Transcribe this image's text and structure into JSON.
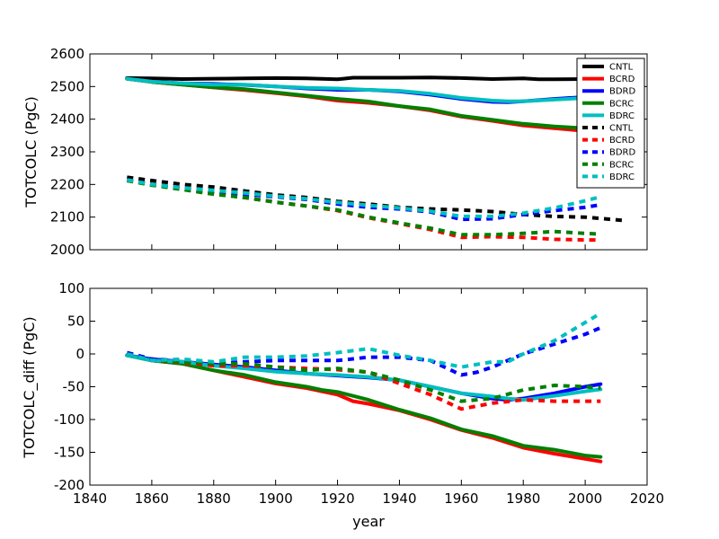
{
  "chart_data": [
    {
      "type": "line",
      "title": "",
      "xlabel": "",
      "ylabel": "TOTCOLC (PgC)",
      "xlim": [
        1840,
        2020
      ],
      "ylim": [
        2000,
        2600
      ],
      "yticks": [
        2000,
        2100,
        2200,
        2300,
        2400,
        2500,
        2600
      ],
      "grid": false,
      "legend_position": "right",
      "series": [
        {
          "name": "CNTL",
          "color": "#000000",
          "style": "solid",
          "x": [
            1852,
            1860,
            1870,
            1880,
            1890,
            1900,
            1910,
            1920,
            1925,
            1930,
            1940,
            1950,
            1960,
            1970,
            1980,
            1985,
            1990,
            2000,
            2005
          ],
          "y": [
            2526,
            2525,
            2523,
            2524,
            2525,
            2526,
            2525,
            2522,
            2527,
            2527,
            2527,
            2528,
            2526,
            2523,
            2525,
            2522,
            2522,
            2523,
            2524
          ]
        },
        {
          "name": "BCRD",
          "color": "#ff0000",
          "style": "solid",
          "x": [
            1852,
            1860,
            1870,
            1880,
            1890,
            1900,
            1910,
            1920,
            1930,
            1940,
            1950,
            1960,
            1970,
            1980,
            1990,
            2000,
            2005
          ],
          "y": [
            2524,
            2514,
            2506,
            2497,
            2489,
            2480,
            2470,
            2457,
            2450,
            2440,
            2427,
            2408,
            2395,
            2381,
            2372,
            2364,
            2360
          ]
        },
        {
          "name": "BDRD",
          "color": "#0000ff",
          "style": "solid",
          "x": [
            1852,
            1860,
            1870,
            1880,
            1890,
            1900,
            1910,
            1920,
            1930,
            1940,
            1950,
            1960,
            1970,
            1975,
            1980,
            1990,
            2000,
            2005
          ],
          "y": [
            2524,
            2515,
            2510,
            2508,
            2505,
            2500,
            2494,
            2490,
            2490,
            2485,
            2475,
            2462,
            2453,
            2452,
            2455,
            2462,
            2468,
            2470
          ]
        },
        {
          "name": "BCRC",
          "color": "#008000",
          "style": "solid",
          "x": [
            1852,
            1860,
            1870,
            1880,
            1890,
            1900,
            1910,
            1920,
            1930,
            1940,
            1950,
            1960,
            1970,
            1980,
            1990,
            2000,
            2005
          ],
          "y": [
            2524,
            2514,
            2506,
            2498,
            2492,
            2482,
            2472,
            2462,
            2454,
            2440,
            2430,
            2410,
            2398,
            2386,
            2378,
            2372,
            2368
          ]
        },
        {
          "name": "BDRC",
          "color": "#00bfbf",
          "style": "solid",
          "x": [
            1852,
            1860,
            1870,
            1880,
            1890,
            1900,
            1910,
            1920,
            1930,
            1940,
            1950,
            1960,
            1970,
            1975,
            1980,
            1990,
            2000,
            2005
          ],
          "y": [
            2524,
            2515,
            2510,
            2506,
            2506,
            2500,
            2496,
            2494,
            2490,
            2487,
            2478,
            2465,
            2457,
            2455,
            2455,
            2460,
            2465,
            2468
          ]
        },
        {
          "name": "CNTL",
          "color": "#000000",
          "style": "dashed",
          "x": [
            1852,
            1860,
            1870,
            1880,
            1890,
            1900,
            1910,
            1920,
            1930,
            1940,
            1950,
            1960,
            1970,
            1980,
            1990,
            2000,
            2012
          ],
          "y": [
            2222,
            2212,
            2200,
            2192,
            2180,
            2168,
            2160,
            2148,
            2140,
            2130,
            2125,
            2122,
            2117,
            2108,
            2102,
            2100,
            2090
          ]
        },
        {
          "name": "BCRD",
          "color": "#ff0000",
          "style": "dashed",
          "x": [
            1852,
            1860,
            1870,
            1880,
            1890,
            1900,
            1910,
            1920,
            1930,
            1940,
            1950,
            1960,
            1970,
            1980,
            1990,
            2000,
            2005
          ],
          "y": [
            2212,
            2200,
            2186,
            2172,
            2160,
            2146,
            2134,
            2120,
            2098,
            2080,
            2062,
            2038,
            2040,
            2038,
            2032,
            2030,
            2030
          ]
        },
        {
          "name": "BDRD",
          "color": "#0000ff",
          "style": "dashed",
          "x": [
            1852,
            1860,
            1870,
            1880,
            1890,
            1900,
            1910,
            1920,
            1930,
            1940,
            1950,
            1960,
            1970,
            1980,
            1990,
            2000,
            2005
          ],
          "y": [
            2214,
            2200,
            2188,
            2178,
            2170,
            2162,
            2154,
            2140,
            2130,
            2125,
            2116,
            2093,
            2095,
            2108,
            2120,
            2130,
            2138
          ]
        },
        {
          "name": "BCRC",
          "color": "#008000",
          "style": "dashed",
          "x": [
            1852,
            1860,
            1870,
            1880,
            1890,
            1900,
            1910,
            1920,
            1930,
            1940,
            1950,
            1960,
            1970,
            1980,
            1990,
            2000,
            2005
          ],
          "y": [
            2212,
            2198,
            2184,
            2170,
            2160,
            2146,
            2134,
            2122,
            2100,
            2082,
            2066,
            2046,
            2046,
            2050,
            2056,
            2050,
            2048
          ]
        },
        {
          "name": "BDRC",
          "color": "#00bfbf",
          "style": "dashed",
          "x": [
            1852,
            1860,
            1870,
            1880,
            1890,
            1900,
            1910,
            1920,
            1930,
            1940,
            1950,
            1960,
            1970,
            1980,
            1990,
            2000,
            2005
          ],
          "y": [
            2214,
            2200,
            2190,
            2182,
            2174,
            2164,
            2156,
            2145,
            2136,
            2128,
            2118,
            2102,
            2102,
            2112,
            2128,
            2150,
            2162
          ]
        }
      ]
    },
    {
      "type": "line",
      "title": "",
      "xlabel": "year",
      "ylabel": "TOTCOLC_diff (PgC)",
      "xlim": [
        1840,
        2020
      ],
      "ylim": [
        -200,
        100
      ],
      "xticks": [
        1840,
        1860,
        1880,
        1900,
        1920,
        1940,
        1960,
        1980,
        2000,
        2020
      ],
      "yticks": [
        -200,
        -150,
        -100,
        -50,
        0,
        50,
        100
      ],
      "grid": false,
      "series": [
        {
          "name": "BCRD",
          "color": "#ff0000",
          "style": "solid",
          "x": [
            1852,
            1860,
            1870,
            1880,
            1890,
            1900,
            1910,
            1920,
            1925,
            1930,
            1940,
            1950,
            1960,
            1970,
            1980,
            1990,
            2000,
            2005
          ],
          "y": [
            -2,
            -10,
            -15,
            -25,
            -35,
            -45,
            -52,
            -62,
            -72,
            -76,
            -86,
            -100,
            -116,
            -128,
            -143,
            -152,
            -160,
            -164
          ]
        },
        {
          "name": "BDRD",
          "color": "#0000ff",
          "style": "solid",
          "x": [
            1852,
            1860,
            1870,
            1880,
            1890,
            1900,
            1910,
            1920,
            1930,
            1940,
            1950,
            1960,
            1970,
            1975,
            1980,
            1990,
            2000,
            2005
          ],
          "y": [
            -2,
            -8,
            -12,
            -16,
            -20,
            -25,
            -30,
            -33,
            -36,
            -40,
            -50,
            -60,
            -68,
            -70,
            -68,
            -60,
            -50,
            -46
          ]
        },
        {
          "name": "BCRC",
          "color": "#008000",
          "style": "solid",
          "x": [
            1852,
            1860,
            1870,
            1880,
            1890,
            1900,
            1910,
            1915,
            1920,
            1930,
            1940,
            1950,
            1960,
            1970,
            1980,
            1990,
            2000,
            2005
          ],
          "y": [
            -2,
            -10,
            -15,
            -25,
            -32,
            -43,
            -50,
            -55,
            -58,
            -70,
            -85,
            -98,
            -115,
            -125,
            -140,
            -146,
            -155,
            -157
          ]
        },
        {
          "name": "BDRC",
          "color": "#00bfbf",
          "style": "solid",
          "x": [
            1852,
            1860,
            1870,
            1880,
            1890,
            1900,
            1910,
            1920,
            1930,
            1940,
            1950,
            1960,
            1970,
            1975,
            1980,
            1990,
            2000,
            2005
          ],
          "y": [
            -2,
            -10,
            -12,
            -18,
            -22,
            -27,
            -30,
            -32,
            -35,
            -40,
            -50,
            -60,
            -65,
            -68,
            -70,
            -64,
            -57,
            -54
          ]
        },
        {
          "name": "BCRD",
          "color": "#ff0000",
          "style": "dashed",
          "x": [
            1852,
            1860,
            1870,
            1880,
            1890,
            1900,
            1910,
            1920,
            1930,
            1940,
            1950,
            1960,
            1970,
            1980,
            1990,
            2000,
            2005
          ],
          "y": [
            0,
            -10,
            -13,
            -18,
            -18,
            -20,
            -22,
            -24,
            -28,
            -45,
            -62,
            -84,
            -75,
            -70,
            -72,
            -72,
            -72
          ]
        },
        {
          "name": "BDRD",
          "color": "#0000ff",
          "style": "dashed",
          "x": [
            1852,
            1860,
            1870,
            1880,
            1890,
            1900,
            1910,
            1920,
            1930,
            1940,
            1950,
            1960,
            1965,
            1970,
            1980,
            1990,
            2000,
            2005
          ],
          "y": [
            2,
            -8,
            -10,
            -15,
            -12,
            -10,
            -10,
            -10,
            -5,
            -5,
            -10,
            -32,
            -28,
            -20,
            0,
            15,
            30,
            40
          ]
        },
        {
          "name": "BCRC",
          "color": "#008000",
          "style": "dashed",
          "x": [
            1852,
            1860,
            1870,
            1880,
            1890,
            1900,
            1910,
            1920,
            1930,
            1940,
            1950,
            1960,
            1970,
            1980,
            1990,
            2000,
            2005
          ],
          "y": [
            0,
            -10,
            -12,
            -15,
            -15,
            -20,
            -25,
            -22,
            -28,
            -40,
            -55,
            -72,
            -68,
            -55,
            -48,
            -50,
            -52
          ]
        },
        {
          "name": "BDRC",
          "color": "#00bfbf",
          "style": "dashed",
          "x": [
            1852,
            1860,
            1870,
            1880,
            1890,
            1900,
            1910,
            1920,
            1930,
            1940,
            1950,
            1960,
            1970,
            1975,
            1980,
            1990,
            2000,
            2005
          ],
          "y": [
            0,
            -10,
            -8,
            -12,
            -5,
            -5,
            -3,
            2,
            8,
            -2,
            -10,
            -20,
            -12,
            -12,
            0,
            20,
            48,
            62
          ]
        }
      ]
    }
  ]
}
